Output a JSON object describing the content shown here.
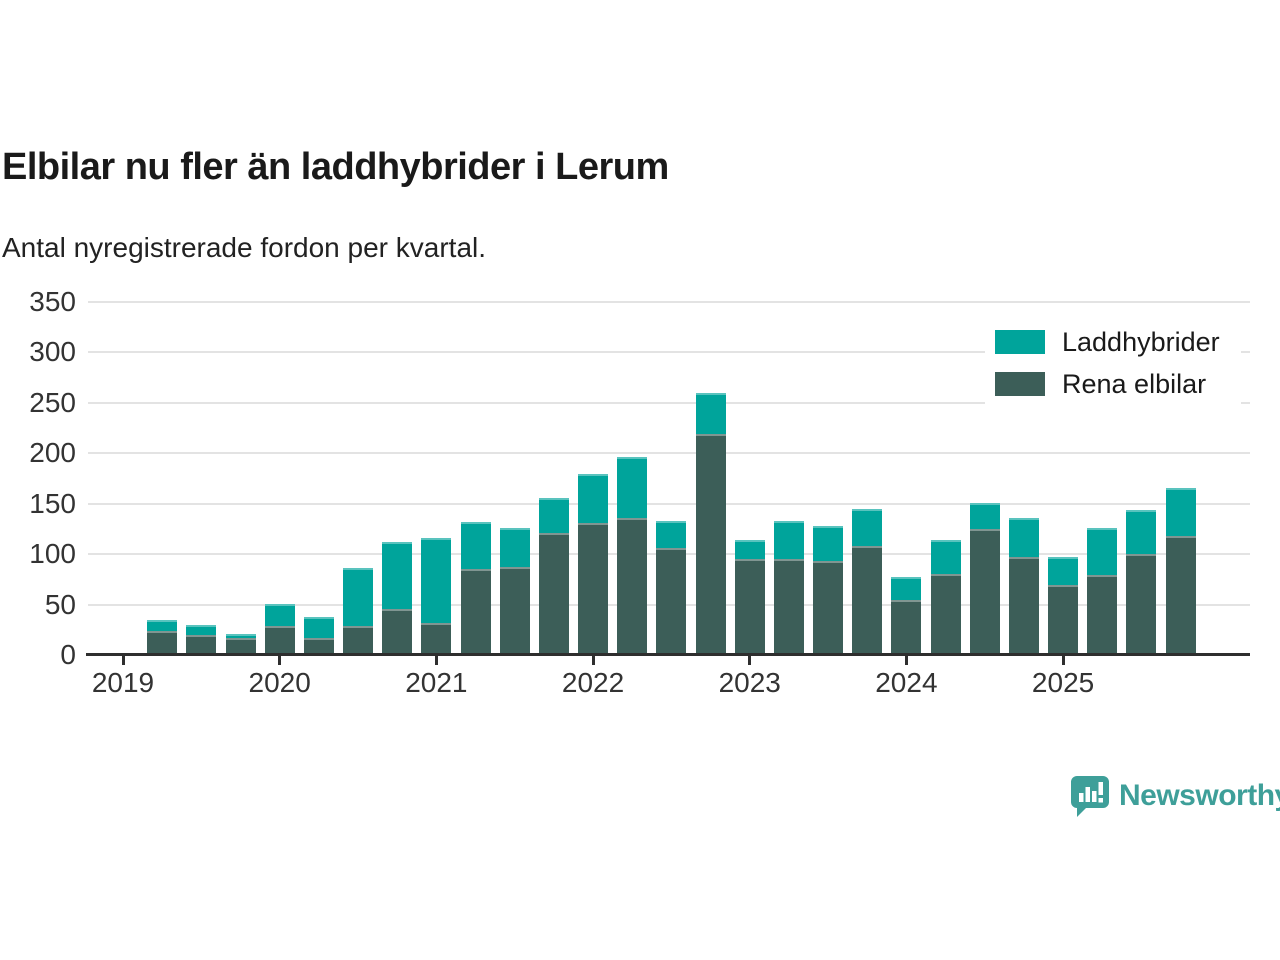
{
  "header": {
    "title": "Elbilar nu fler än laddhybrider i Lerum",
    "subtitle": "Antal nyregistrerade fordon per kvartal."
  },
  "chart_data": {
    "type": "bar",
    "stacked": true,
    "title": "Elbilar nu fler än laddhybrider i Lerum",
    "subtitle": "Antal nyregistrerade fordon per kvartal.",
    "x": [
      "2019 Q2",
      "2019 Q3",
      "2019 Q4",
      "2020 Q1",
      "2020 Q2",
      "2020 Q3",
      "2020 Q4",
      "2021 Q1",
      "2021 Q2",
      "2021 Q3",
      "2021 Q4",
      "2022 Q1",
      "2022 Q2",
      "2022 Q3",
      "2022 Q4",
      "2023 Q1",
      "2023 Q2",
      "2023 Q3",
      "2023 Q4",
      "2024 Q1",
      "2024 Q2",
      "2024 Q3",
      "2024 Q4",
      "2025 Q1",
      "2025 Q2",
      "2025 Q3",
      "2025 Q4"
    ],
    "series": [
      {
        "name": "Laddhybrider",
        "color": "#00a49b",
        "values": [
          11,
          10,
          4,
          22,
          21,
          57,
          66,
          84,
          47,
          39,
          35,
          48,
          60,
          27,
          41,
          19,
          38,
          35,
          37,
          22,
          34,
          26,
          39,
          28,
          47,
          44,
          48
        ]
      },
      {
        "name": "Rena elbilar",
        "color": "#3c5e58",
        "values": [
          24,
          20,
          17,
          29,
          17,
          29,
          46,
          32,
          85,
          87,
          121,
          131,
          136,
          106,
          219,
          95,
          95,
          93,
          108,
          55,
          80,
          125,
          97,
          69,
          79,
          100,
          118
        ]
      }
    ],
    "stack_order_bottom_to_top": [
      "Rena elbilar",
      "Laddhybrider"
    ],
    "ylim": [
      0,
      350
    ],
    "yticks": [
      0,
      50,
      100,
      150,
      200,
      250,
      300,
      350
    ],
    "xticks": [
      "2019",
      "2020",
      "2021",
      "2022",
      "2023",
      "2024",
      "2025"
    ],
    "grid": "horizontal",
    "legend_position": "top-right"
  },
  "legend": {
    "items": [
      {
        "label": "Laddhybrider",
        "color": "#00a49b"
      },
      {
        "label": "Rena elbilar",
        "color": "#3c5e58"
      }
    ]
  },
  "branding": {
    "wordmark": "Newsworthy",
    "logo_icon": "bar-chart-speech-bubble-icon",
    "color": "#3e9f99"
  },
  "colors": {
    "laddhybrider": "#00a49b",
    "rena_elbilar": "#3c5e58",
    "gridline": "#e3e3e3",
    "axis": "#2e2e2e",
    "tick_text": "#333333"
  }
}
